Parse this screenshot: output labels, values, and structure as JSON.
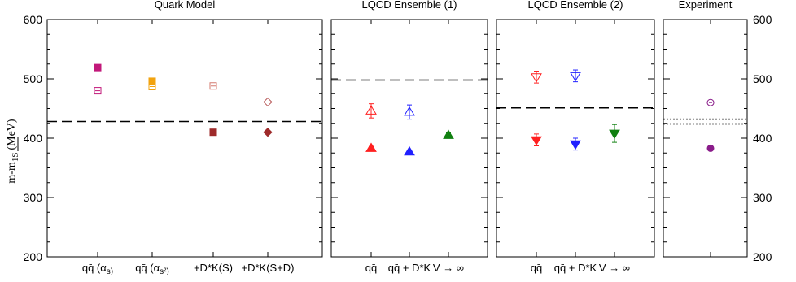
{
  "chart_data": {
    "type": "scatter",
    "ylabel": "m-m",
    "ylabel_sub": "1S",
    "ylabel_unit": "(MeV)",
    "ylim": [
      200,
      600
    ],
    "yticks": [
      200,
      300,
      400,
      500,
      600
    ],
    "grid": false,
    "panels": [
      {
        "title": "Quark Model",
        "categories": [
          "qq̄ (α",
          "qq̄ (α",
          "+D*K(S)",
          "+D*K(S+D)"
        ],
        "category_suffixes": [
          "s)",
          "s²)",
          "",
          ""
        ],
        "reference_line": {
          "y": 428,
          "style": "dashed"
        },
        "series": [
          {
            "marker": "square-filled",
            "color": "#c2187a",
            "points": [
              {
                "x": 0,
                "y": 519
              }
            ]
          },
          {
            "marker": "square-open",
            "color": "#c2187a",
            "points": [
              {
                "x": 0,
                "y": 480
              }
            ]
          },
          {
            "marker": "square-filled",
            "color": "#f2a30f",
            "points": [
              {
                "x": 1,
                "y": 496
              }
            ]
          },
          {
            "marker": "square-open",
            "color": "#f2a30f",
            "points": [
              {
                "x": 1,
                "y": 487
              }
            ]
          },
          {
            "marker": "square-open",
            "color": "#d47a6e",
            "points": [
              {
                "x": 2,
                "y": 488
              }
            ]
          },
          {
            "marker": "square-filled",
            "color": "#9e2a2a",
            "points": [
              {
                "x": 2,
                "y": 410
              }
            ]
          },
          {
            "marker": "diamond-open",
            "color": "#b85a5a",
            "points": [
              {
                "x": 3,
                "y": 461
              }
            ]
          },
          {
            "marker": "diamond-filled",
            "color": "#9e2a2a",
            "points": [
              {
                "x": 3,
                "y": 410
              }
            ]
          }
        ]
      },
      {
        "title": "LQCD Ensemble (1)",
        "categories": [
          "qq̄",
          "qq̄ + D*K",
          "V → ∞"
        ],
        "reference_line": {
          "y": 498,
          "style": "dashed"
        },
        "series": [
          {
            "marker": "triangle-up-open",
            "color": "#ff2020",
            "points": [
              {
                "x": 0,
                "y": 446,
                "err": 12
              }
            ]
          },
          {
            "marker": "triangle-up-filled",
            "color": "#ff2020",
            "points": [
              {
                "x": 0,
                "y": 383,
                "err": 3
              }
            ]
          },
          {
            "marker": "triangle-up-open",
            "color": "#2020ff",
            "points": [
              {
                "x": 1,
                "y": 444,
                "err": 12
              }
            ]
          },
          {
            "marker": "triangle-up-filled",
            "color": "#2020ff",
            "points": [
              {
                "x": 1,
                "y": 377,
                "err": 3
              }
            ]
          },
          {
            "marker": "triangle-up-filled",
            "color": "#108010",
            "points": [
              {
                "x": 2,
                "y": 405,
                "err": 4
              }
            ]
          }
        ]
      },
      {
        "title": "LQCD Ensemble (2)",
        "categories": [
          "qq̄",
          "qq̄ + D*K",
          "V → ∞"
        ],
        "reference_line": {
          "y": 451,
          "style": "dashed"
        },
        "series": [
          {
            "marker": "triangle-down-open",
            "color": "#ff2020",
            "points": [
              {
                "x": 0,
                "y": 503,
                "err": 10
              }
            ]
          },
          {
            "marker": "triangle-down-filled",
            "color": "#ff2020",
            "points": [
              {
                "x": 0,
                "y": 397,
                "err": 10
              }
            ]
          },
          {
            "marker": "triangle-down-open",
            "color": "#2020ff",
            "points": [
              {
                "x": 1,
                "y": 505,
                "err": 10
              }
            ]
          },
          {
            "marker": "triangle-down-filled",
            "color": "#2020ff",
            "points": [
              {
                "x": 1,
                "y": 390,
                "err": 10
              }
            ]
          },
          {
            "marker": "triangle-down-filled",
            "color": "#108010",
            "points": [
              {
                "x": 2,
                "y": 408,
                "err": 15
              }
            ]
          }
        ]
      },
      {
        "title": "Experiment",
        "categories": [
          ""
        ],
        "reference_lines": [
          {
            "y": 432,
            "style": "dotted"
          },
          {
            "y": 424,
            "style": "dotted"
          }
        ],
        "series": [
          {
            "marker": "circle-open",
            "color": "#8a1c8a",
            "points": [
              {
                "x": 0,
                "y": 460
              }
            ]
          },
          {
            "marker": "circle-filled",
            "color": "#8a1c8a",
            "points": [
              {
                "x": 0,
                "y": 383
              }
            ]
          }
        ]
      }
    ]
  }
}
